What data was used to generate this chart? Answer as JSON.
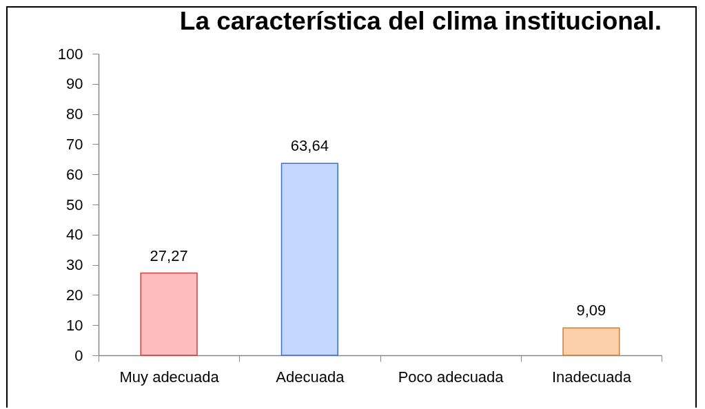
{
  "chart_data": {
    "type": "bar",
    "title": "La característica del clima institucional.",
    "categories": [
      "Muy adecuada",
      "Adecuada",
      "Poco adecuada",
      "Inadecuada"
    ],
    "values": [
      27.27,
      63.64,
      null,
      9.09
    ],
    "value_labels": [
      "27,27",
      "63,64",
      null,
      "9,09"
    ],
    "colors": [
      "#ffbcbc",
      "#c4d7fe",
      null,
      "#fdd0ac"
    ],
    "ylim": [
      0,
      100
    ],
    "yticks": [
      0,
      10,
      20,
      30,
      40,
      50,
      60,
      70,
      80,
      90,
      100
    ]
  }
}
